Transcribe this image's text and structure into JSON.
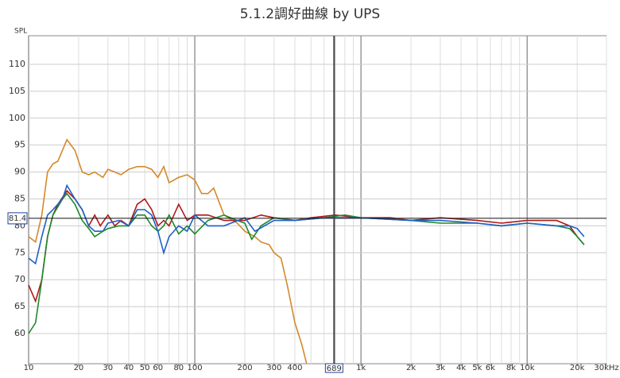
{
  "chart_data": {
    "type": "line",
    "title": "5.1.2調好曲線 by UPS",
    "y_label": "SPL",
    "log_x": true,
    "grid": true,
    "xlim": [
      10,
      30000
    ],
    "ylim": [
      54.4,
      115.3
    ],
    "xticks": [
      10,
      20,
      30,
      40,
      50,
      60,
      80,
      100,
      200,
      300,
      400,
      {
        "value": 1000,
        "label": "1k"
      },
      {
        "value": 2000,
        "label": "2k"
      },
      {
        "value": 3000,
        "label": "3k"
      },
      {
        "value": 4000,
        "label": "4k"
      },
      {
        "value": 5000,
        "label": "5k"
      },
      {
        "value": 6000,
        "label": "6k"
      },
      {
        "value": 8000,
        "label": "8k"
      },
      {
        "value": 10000,
        "label": "10k"
      },
      {
        "value": 20000,
        "label": "20k"
      },
      {
        "value": 30000,
        "label": "30kHz"
      }
    ],
    "xgrid": [
      10,
      20,
      30,
      40,
      50,
      60,
      70,
      80,
      90,
      100,
      200,
      300,
      400,
      500,
      600,
      700,
      800,
      900,
      1000,
      2000,
      3000,
      4000,
      5000,
      6000,
      7000,
      8000,
      9000,
      10000,
      20000,
      30000
    ],
    "yticks": [
      60,
      65,
      70,
      75,
      80,
      85,
      90,
      95,
      100,
      105,
      110
    ],
    "cursor_x": 689,
    "cursor_y": 81.4,
    "series": [
      {
        "color": "#d4892a",
        "x": [
          10,
          11,
          12,
          13,
          14,
          15,
          17,
          19,
          21,
          23,
          25,
          28,
          30,
          33,
          36,
          40,
          45,
          50,
          55,
          60,
          65,
          70,
          80,
          90,
          100,
          110,
          120,
          130,
          150,
          180,
          200,
          230,
          250,
          280,
          300,
          330,
          360,
          400,
          440,
          470
        ],
        "values": [
          78,
          77,
          82,
          90,
          91.5,
          92,
          96,
          94,
          90,
          89.5,
          90,
          89,
          90.5,
          90,
          89.5,
          90.5,
          91,
          91,
          90.5,
          89,
          91,
          88,
          89,
          89.5,
          88.5,
          86,
          86,
          87,
          82,
          80.5,
          79,
          78,
          77,
          76.5,
          75,
          74,
          69,
          62,
          58,
          54.5
        ]
      },
      {
        "color": "#b01818",
        "x": [
          10,
          11,
          12,
          13,
          14,
          15,
          17,
          19,
          21,
          23,
          25,
          27,
          30,
          33,
          36,
          40,
          45,
          50,
          55,
          60,
          65,
          70,
          80,
          90,
          100,
          120,
          150,
          200,
          250,
          300,
          400,
          500,
          700,
          1000,
          1500,
          2000,
          3000,
          5000,
          7000,
          10000,
          15000,
          18000,
          20000,
          22000
        ],
        "values": [
          69,
          66,
          70,
          78,
          82,
          84,
          86.5,
          85,
          83,
          80,
          82,
          80,
          82,
          80,
          81,
          80,
          84,
          85,
          83,
          80,
          81,
          80,
          84,
          81,
          82,
          82,
          81,
          81,
          82,
          81.5,
          81,
          81.5,
          82,
          81.5,
          81.5,
          81,
          81.5,
          81,
          80.5,
          81,
          81,
          80,
          78,
          76.5
        ]
      },
      {
        "color": "#1a8a2a",
        "x": [
          10,
          11,
          12,
          13,
          14,
          16,
          17,
          19,
          21,
          23,
          25,
          28,
          30,
          35,
          40,
          45,
          50,
          55,
          60,
          65,
          70,
          80,
          90,
          100,
          120,
          150,
          180,
          200,
          220,
          250,
          300,
          400,
          600,
          800,
          1000,
          2000,
          3000,
          5000,
          7000,
          10000,
          15000,
          18000,
          20000,
          22000
        ],
        "values": [
          60,
          62,
          70,
          78,
          82,
          85,
          86,
          84,
          81,
          79.5,
          78,
          79,
          79.5,
          80,
          80,
          82,
          82,
          80,
          79,
          80,
          82,
          78.5,
          80,
          78.5,
          81,
          82,
          81,
          80.5,
          77.5,
          80,
          81.5,
          81,
          81.5,
          82,
          81.5,
          81,
          80.5,
          80.5,
          80,
          80.5,
          80,
          79.5,
          78,
          76.5
        ]
      },
      {
        "color": "#1f5fc8",
        "x": [
          10,
          11,
          12,
          13,
          14,
          16,
          17,
          19,
          21,
          23,
          25,
          28,
          30,
          35,
          40,
          45,
          50,
          55,
          60,
          65,
          70,
          80,
          90,
          100,
          120,
          150,
          200,
          230,
          300,
          400,
          600,
          1000,
          2000,
          3000,
          5000,
          7000,
          10000,
          15000,
          18000,
          20000,
          22000
        ],
        "values": [
          74,
          73,
          78,
          82,
          83,
          85,
          87.5,
          85,
          83,
          80,
          79,
          79,
          80.5,
          81,
          80,
          83,
          83,
          82,
          79,
          75,
          78,
          80,
          79,
          82,
          80,
          80,
          81.5,
          79,
          81,
          81,
          81.5,
          81.5,
          81,
          81,
          80.5,
          80,
          80.5,
          80,
          80,
          79.5,
          78
        ]
      }
    ]
  }
}
